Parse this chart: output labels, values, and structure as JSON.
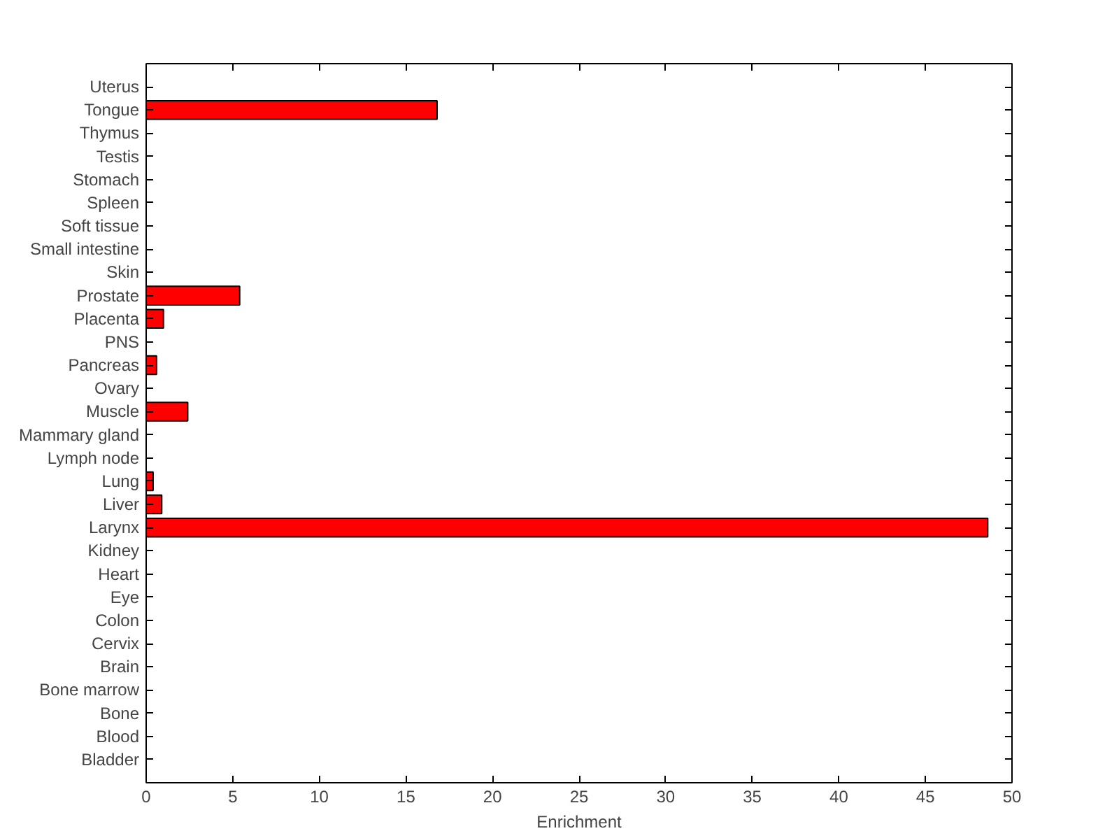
{
  "chart_data": {
    "type": "bar",
    "orientation": "horizontal",
    "xlabel": "Enrichment",
    "categories": [
      "Uterus",
      "Tongue",
      "Thymus",
      "Testis",
      "Stomach",
      "Spleen",
      "Soft tissue",
      "Small intestine",
      "Skin",
      "Prostate",
      "Placenta",
      "PNS",
      "Pancreas",
      "Ovary",
      "Muscle",
      "Mammary gland",
      "Lymph node",
      "Lung",
      "Liver",
      "Larynx",
      "Kidney",
      "Heart",
      "Eye",
      "Colon",
      "Cervix",
      "Brain",
      "Bone marrow",
      "Bone",
      "Blood",
      "Bladder"
    ],
    "values": [
      0,
      16.8,
      0,
      0,
      0,
      0,
      0,
      0,
      0,
      5.4,
      1.0,
      0,
      0.6,
      0,
      2.4,
      0,
      0,
      0.4,
      0.9,
      48.6,
      0,
      0,
      0,
      0,
      0,
      0,
      0,
      0,
      0,
      0
    ],
    "color": "#ff0000",
    "xlim": [
      0,
      50
    ],
    "xticks": [
      0,
      5,
      10,
      15,
      20,
      25,
      30,
      35,
      40,
      45,
      50
    ],
    "grid": false
  }
}
